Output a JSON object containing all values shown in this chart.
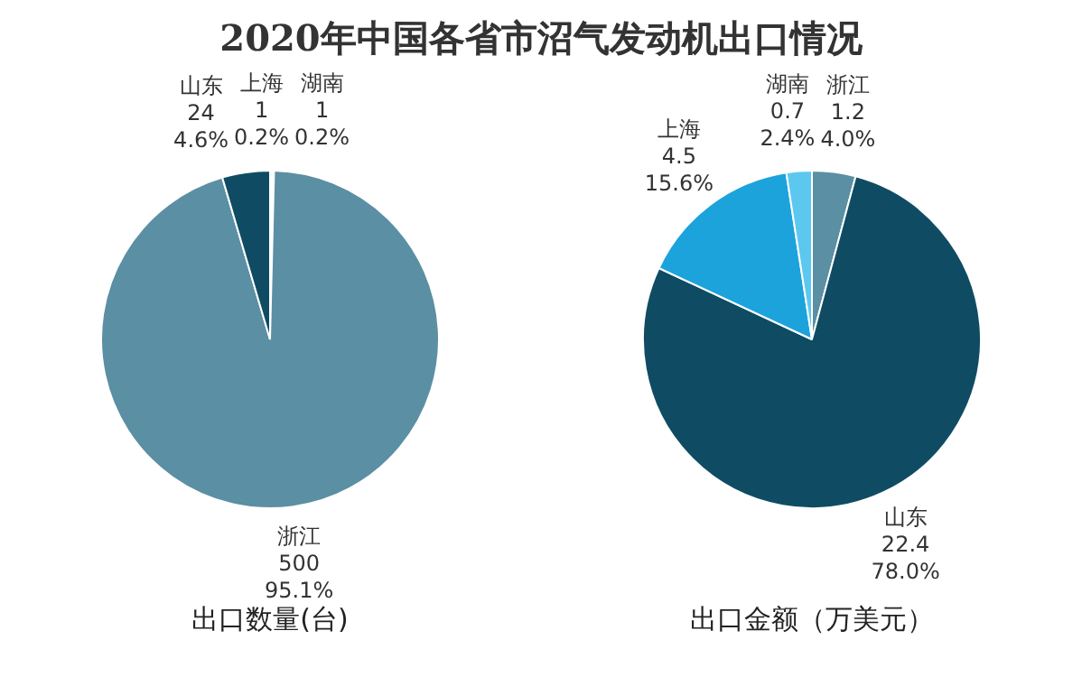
{
  "chart_data": [
    {
      "type": "pie",
      "title": "2020年中国各省市沼气发动机出口情况",
      "xlabel": "出口数量(台)",
      "categories": [
        "上海",
        "湖南",
        "浙江",
        "山东"
      ],
      "values": [
        1,
        1,
        500,
        24
      ],
      "colors": [
        "#1ca3dc",
        "#5cc8f0",
        "#5b8fa3",
        "#0f4c63"
      ],
      "value_labels": [
        "1\n0.2%",
        "1\n0.2%",
        "500\n95.1%",
        "24\n4.6%"
      ]
    },
    {
      "type": "pie",
      "xlabel": "出口金额（万美元）",
      "categories": [
        "浙江",
        "山东",
        "上海",
        "湖南"
      ],
      "values": [
        1.2,
        22.4,
        4.5,
        0.7
      ],
      "colors": [
        "#5b8fa3",
        "#0f4c63",
        "#1ca3dc",
        "#5cc8f0"
      ],
      "value_labels": [
        "1.2\n4.0%",
        "22.4\n78.0%",
        "4.5\n15.6%",
        "0.7\n2.4%"
      ]
    }
  ]
}
